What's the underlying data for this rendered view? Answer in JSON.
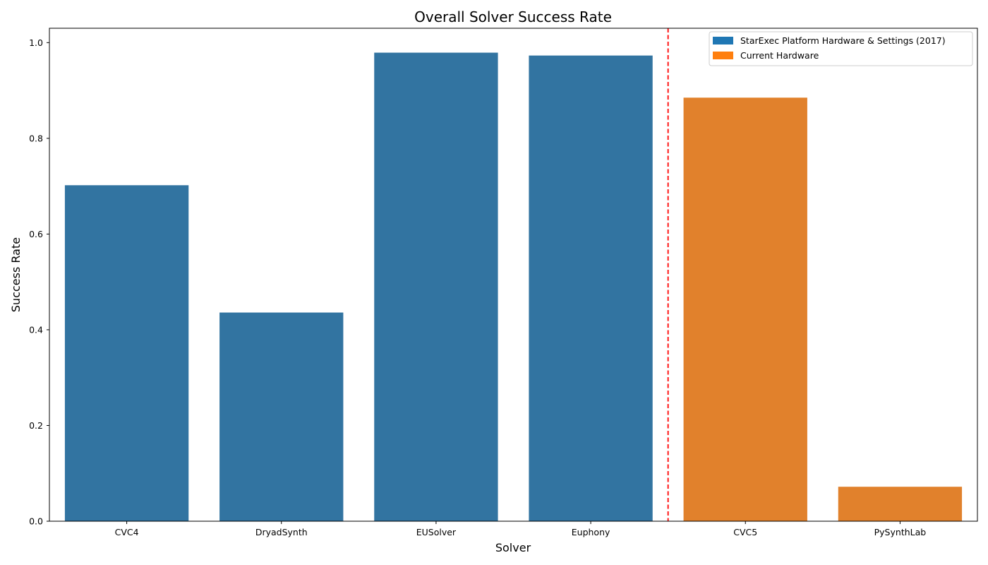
{
  "chart_data": {
    "type": "bar",
    "title": "Overall Solver Success Rate",
    "xlabel": "Solver",
    "ylabel": "Success Rate",
    "categories": [
      "CVC4",
      "DryadSynth",
      "EUSolver",
      "Euphony",
      "CVC5",
      "PySynthLab"
    ],
    "values": [
      0.702,
      0.436,
      0.979,
      0.973,
      0.885,
      0.072
    ],
    "groups": [
      "StarExec Platform Hardware & Settings (2017)",
      "StarExec Platform Hardware & Settings (2017)",
      "StarExec Platform Hardware & Settings (2017)",
      "StarExec Platform Hardware & Settings (2017)",
      "Current Hardware",
      "Current Hardware"
    ],
    "ylim": [
      0,
      1.03
    ],
    "yticks": [
      "0.0",
      "0.2",
      "0.4",
      "0.6",
      "0.8",
      "1.0"
    ],
    "grid": false,
    "legend": {
      "placement": "top-right",
      "entries": [
        {
          "label": "StarExec Platform Hardware & Settings (2017)",
          "color": "#1f77b4"
        },
        {
          "label": "Current Hardware",
          "color": "#ff7f0e"
        }
      ]
    },
    "bar_colors": {
      "StarExec Platform Hardware & Settings (2017)": "#3274a1",
      "Current Hardware": "#e1812c"
    },
    "divider": {
      "after_category_index": 3,
      "color": "#ff0000",
      "style": "dashed"
    }
  }
}
